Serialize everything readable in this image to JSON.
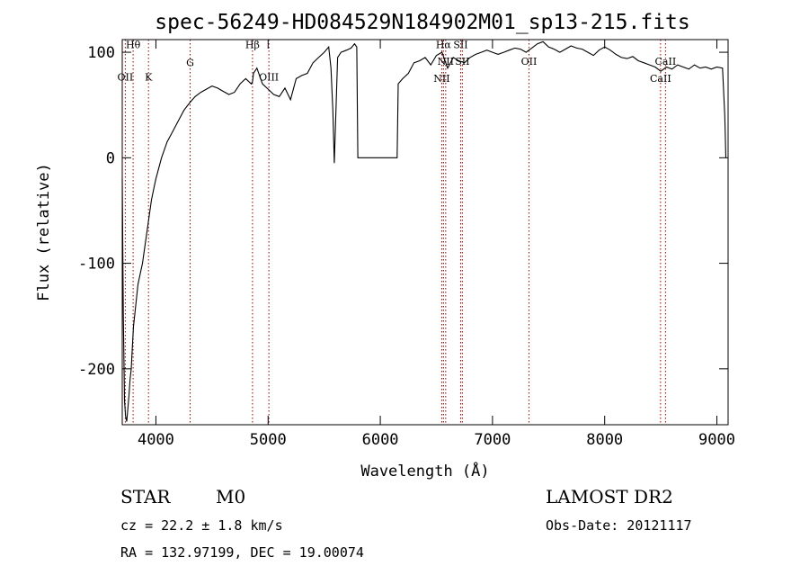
{
  "chart_data": {
    "type": "line",
    "title": "spec-56249-HD084529N184902M01_sp13-215.fits",
    "xlabel": "Wavelength (Å)",
    "ylabel": "Flux (relative)",
    "xlim": [
      3700,
      9100
    ],
    "ylim": [
      -253,
      112
    ],
    "xticks": [
      4000,
      5000,
      6000,
      7000,
      8000,
      9000
    ],
    "yticks": [
      -200,
      -100,
      0,
      100
    ],
    "grid": false,
    "series": [
      {
        "x": [
          3700,
          3710,
          3720,
          3730,
          3740,
          3750,
          3760,
          3770,
          3780,
          3790,
          3800,
          3820,
          3840,
          3860,
          3880,
          3900,
          3920,
          3940,
          3960,
          3980,
          4000,
          4050,
          4100,
          4150,
          4200,
          4250,
          4300,
          4350,
          4400,
          4450,
          4500,
          4550,
          4600,
          4650,
          4700,
          4750,
          4800,
          4850,
          4861,
          4870,
          4900,
          4950,
          5000,
          5050,
          5100,
          5150,
          5200,
          5250,
          5300,
          5350,
          5400,
          5450,
          5500,
          5540,
          5560,
          5577,
          5590,
          5620,
          5650,
          5700,
          5740,
          5770,
          5790,
          5800,
          5900,
          6000,
          6100,
          6150,
          6160,
          6200,
          6250,
          6300,
          6350,
          6400,
          6450,
          6500,
          6550,
          6600,
          6650,
          6700,
          6750,
          6800,
          6850,
          6900,
          6950,
          7000,
          7050,
          7100,
          7150,
          7200,
          7250,
          7300,
          7350,
          7400,
          7450,
          7500,
          7550,
          7600,
          7650,
          7700,
          7750,
          7800,
          7850,
          7900,
          7950,
          8000,
          8050,
          8100,
          8150,
          8200,
          8250,
          8300,
          8350,
          8400,
          8450,
          8500,
          8550,
          8600,
          8650,
          8700,
          8750,
          8800,
          8850,
          8900,
          8950,
          9000,
          9050,
          9070,
          9080
        ],
        "y": [
          -20,
          -150,
          -230,
          -245,
          -250,
          -238,
          -225,
          -210,
          -200,
          -180,
          -160,
          -140,
          -120,
          -110,
          -100,
          -85,
          -70,
          -55,
          -40,
          -30,
          -20,
          0,
          15,
          25,
          35,
          45,
          52,
          58,
          62,
          65,
          68,
          66,
          63,
          60,
          62,
          70,
          75,
          70,
          72,
          80,
          85,
          70,
          65,
          60,
          58,
          66,
          55,
          75,
          78,
          80,
          90,
          95,
          100,
          105,
          85,
          45,
          -5,
          95,
          100,
          102,
          104,
          108,
          105,
          0,
          0,
          0,
          0,
          0,
          70,
          75,
          80,
          90,
          92,
          95,
          88,
          97,
          100,
          85,
          95,
          92,
          90,
          95,
          98,
          100,
          102,
          100,
          98,
          100,
          102,
          104,
          103,
          100,
          104,
          108,
          110,
          105,
          103,
          100,
          103,
          106,
          104,
          103,
          100,
          97,
          102,
          105,
          102,
          98,
          95,
          94,
          96,
          92,
          90,
          88,
          86,
          82,
          86,
          84,
          88,
          86,
          84,
          88,
          85,
          86,
          84,
          86,
          85,
          40,
          0
        ]
      }
    ],
    "line_markers": [
      {
        "label": "Hθ",
        "x": 3797,
        "label_y": 104
      },
      {
        "label": "OII",
        "x": 3727,
        "label_y": 73
      },
      {
        "label": "K",
        "x": 3934,
        "label_y": 73
      },
      {
        "label": "G",
        "x": 4305,
        "label_y": 87
      },
      {
        "label": "Hβ",
        "x": 4861,
        "label_y": 104
      },
      {
        "label": "OIII",
        "x": 5007,
        "label_y": 73
      },
      {
        "label": "Hα",
        "x": 6563,
        "label_y": 104
      },
      {
        "label": "SII",
        "x": 6716,
        "label_y": 104
      },
      {
        "label": "NII",
        "x": 6583,
        "label_y": 88
      },
      {
        "label": "SII",
        "x": 6731,
        "label_y": 88
      },
      {
        "label": "NII",
        "x": 6548,
        "label_y": 72
      },
      {
        "label": "OII",
        "x": 7325,
        "label_y": 88
      },
      {
        "label": "CaII",
        "x": 8542,
        "label_y": 88
      },
      {
        "label": "CaII",
        "x": 8498,
        "label_y": 72
      }
    ],
    "marker_color": "#8b0000"
  },
  "info": {
    "class_label": "STAR",
    "subclass": "M0",
    "survey": "LAMOST DR2",
    "cz_line": "cz = 22.2 ± 1.8 km/s",
    "obs_date": "Obs-Date: 20121117",
    "coords": "RA = 132.97199, DEC =  19.00074"
  }
}
